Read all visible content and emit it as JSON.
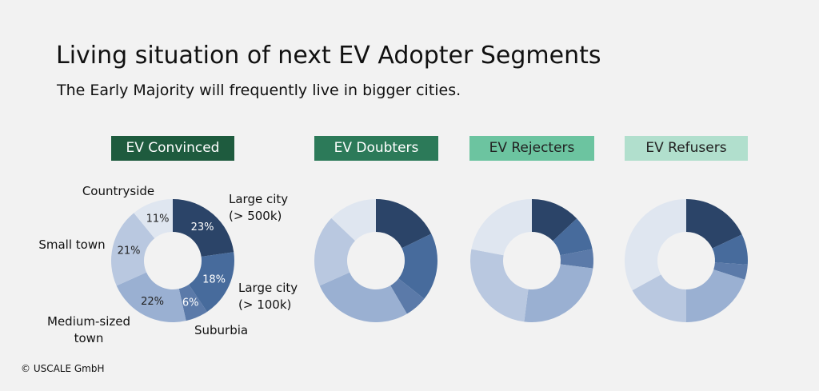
{
  "title": "Living situation of next EV Adopter Segments",
  "subtitle": "The Early Majority will frequently live in bigger cities.",
  "copyright": "© USCALE GmbH",
  "colors": {
    "background": "#f2f2f2",
    "segment_labels": [
      "#1e5b3e",
      "#2c7a59",
      "#6cc4a0",
      "#b1dfcd"
    ],
    "segment_label_text": [
      "#ffffff",
      "#ffffff",
      "#222222",
      "#222222"
    ],
    "slices": [
      "#2b4468",
      "#476b9c",
      "#5b7aa9",
      "#9ab0d2",
      "#b9c8e0",
      "#dfe6f0"
    ]
  },
  "chart_data": {
    "type": "pie",
    "variant": "donut",
    "categories": [
      "Large city (> 500k)",
      "Large city (> 100k)",
      "Suburbia",
      "Medium-sized town",
      "Small town",
      "Countryside"
    ],
    "category_labels": [
      [
        "Large city",
        "(> 500k)"
      ],
      [
        "Large city",
        "(> 100k)"
      ],
      [
        "Suburbia"
      ],
      [
        "Medium-sized",
        "town"
      ],
      [
        "Small town"
      ],
      [
        "Countryside"
      ]
    ],
    "series": [
      {
        "name": "EV Convinced",
        "values": [
          23,
          18,
          6,
          22,
          21,
          11
        ],
        "value_labels": [
          "23%",
          "18%",
          "6%",
          "22%",
          "21%",
          "11%"
        ]
      },
      {
        "name": "EV Doubters",
        "values": [
          18,
          18,
          6,
          27,
          19,
          13
        ]
      },
      {
        "name": "EV Rejecters",
        "values": [
          13,
          9,
          5,
          25,
          26,
          22
        ]
      },
      {
        "name": "EV Refusers",
        "values": [
          18,
          8,
          4,
          20,
          17,
          33
        ]
      }
    ]
  }
}
